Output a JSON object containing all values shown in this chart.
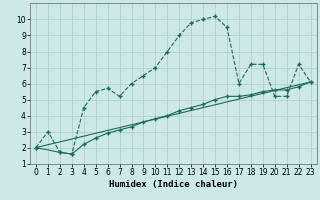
{
  "xlabel": "Humidex (Indice chaleur)",
  "background_color": "#cce8e8",
  "grid_color": "#aacccc",
  "line_color": "#1a6b5a",
  "xlim": [
    -0.5,
    23.5
  ],
  "ylim": [
    1,
    11
  ],
  "xticks": [
    0,
    1,
    2,
    3,
    4,
    5,
    6,
    7,
    8,
    9,
    10,
    11,
    12,
    13,
    14,
    15,
    16,
    17,
    18,
    19,
    20,
    21,
    22,
    23
  ],
  "yticks": [
    1,
    2,
    3,
    4,
    5,
    6,
    7,
    8,
    9,
    10
  ],
  "main_line_x": [
    0,
    1,
    2,
    3,
    4,
    5,
    6,
    7,
    8,
    9,
    10,
    11,
    12,
    13,
    14,
    15,
    16,
    17,
    18,
    19,
    20,
    21,
    22,
    23
  ],
  "main_line_y": [
    2.0,
    3.0,
    1.7,
    1.6,
    4.5,
    5.5,
    5.7,
    5.2,
    6.0,
    6.5,
    7.0,
    8.0,
    9.0,
    9.8,
    10.0,
    10.2,
    9.5,
    6.0,
    7.2,
    7.2,
    5.2,
    5.2,
    7.2,
    6.1
  ],
  "trend_x": [
    0,
    23
  ],
  "trend_y": [
    2.0,
    6.1
  ],
  "smooth_x": [
    0,
    2,
    3,
    4,
    5,
    6,
    7,
    8,
    9,
    10,
    11,
    12,
    13,
    14,
    15,
    16,
    17,
    18,
    19,
    20,
    21,
    22,
    23
  ],
  "smooth_y": [
    2.0,
    1.7,
    1.6,
    2.2,
    2.6,
    2.9,
    3.1,
    3.3,
    3.6,
    3.8,
    4.0,
    4.3,
    4.5,
    4.7,
    5.0,
    5.2,
    5.2,
    5.3,
    5.5,
    5.6,
    5.6,
    5.8,
    6.1
  ],
  "marker_size": 3,
  "linewidth": 0.8,
  "tick_fontsize": 5.5,
  "xlabel_fontsize": 6.5
}
